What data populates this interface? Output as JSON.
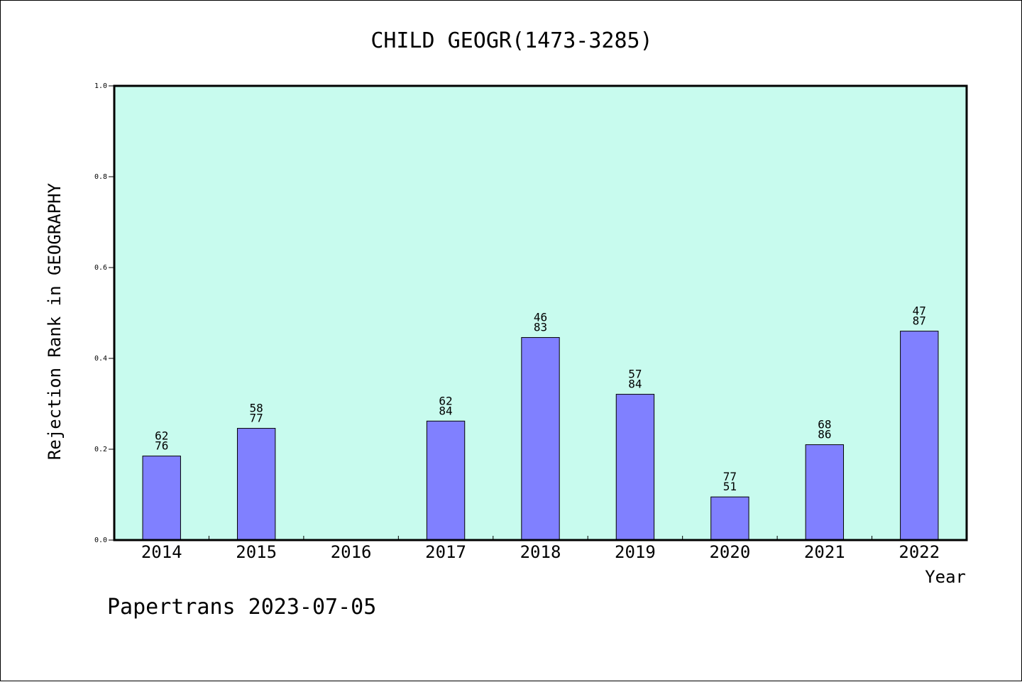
{
  "chart_data": {
    "type": "bar",
    "title": "CHILD GEOGR(1473-3285)",
    "xlabel": "Year",
    "ylabel": "Rejection Rank in GEOGRAPHY",
    "footer": "Papertrans 2023-07-05",
    "categories": [
      "2014",
      "2015",
      "2016",
      "2017",
      "2018",
      "2019",
      "2020",
      "2021",
      "2022"
    ],
    "values": [
      0.185,
      0.246,
      null,
      0.262,
      0.446,
      0.321,
      0.095,
      0.21,
      0.46
    ],
    "labels_top": [
      "62",
      "58",
      "",
      "62",
      "46",
      "57",
      "77",
      "68",
      "47"
    ],
    "labels_bottom": [
      "76",
      "77",
      "",
      "84",
      "83",
      "84",
      "51",
      "86",
      "87"
    ],
    "ylim": [
      0,
      1.0
    ],
    "yticks": [
      "0.0",
      "0.2",
      "0.4",
      "0.6",
      "0.8",
      "1.0"
    ],
    "grid": false,
    "colors": {
      "plot_background": "#c8fbee",
      "bar_fill": "#8080ff",
      "bar_stroke": "#000000"
    }
  }
}
